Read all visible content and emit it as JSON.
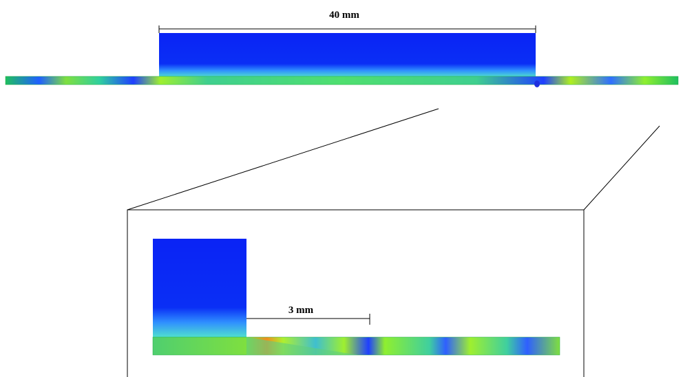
{
  "labels": {
    "top_dimension": "40 mm",
    "zoom_dimension": "3 mm"
  }
}
